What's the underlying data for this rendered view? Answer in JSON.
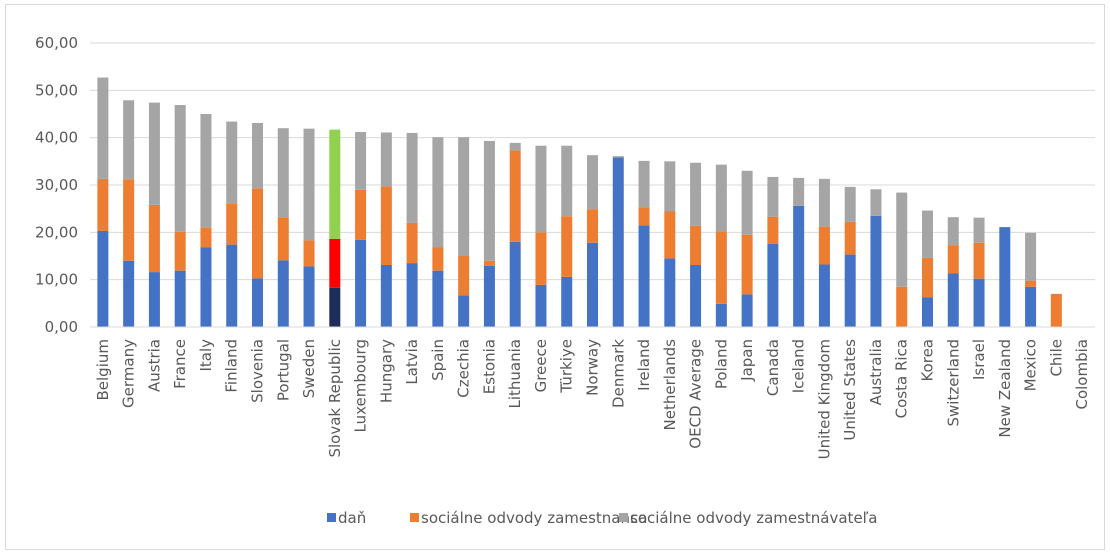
{
  "chart_data": {
    "type": "bar",
    "stacked": true,
    "ylim": [
      0,
      60
    ],
    "ytick_step": 10,
    "ytick_labels": [
      "0,00",
      "10,00",
      "20,00",
      "30,00",
      "40,00",
      "50,00",
      "60,00"
    ],
    "grid": true,
    "legend_position": "bottom",
    "categories": [
      "Belgium",
      "Germany",
      "Austria",
      "France",
      "Italy",
      "Finland",
      "Slovenia",
      "Portugal",
      "Sweden",
      "Slovak Republic",
      "Luxembourg",
      "Hungary",
      "Latvia",
      "Spain",
      "Czechia",
      "Estonia",
      "Lithuania",
      "Greece",
      "Türkiye",
      "Norway",
      "Denmark",
      "Ireland",
      "Netherlands",
      "OECD Average",
      "Poland",
      "Japan",
      "Canada",
      "Iceland",
      "United Kingdom",
      "United States",
      "Australia",
      "Costa Rica",
      "Korea",
      "Switzerland",
      "Israel",
      "New Zealand",
      "Mexico",
      "Chile",
      "Colombia"
    ],
    "series": [
      {
        "name": "daň",
        "color": "#4472c4",
        "values": [
          20.3,
          14.0,
          11.6,
          11.9,
          16.8,
          17.4,
          10.3,
          14.1,
          12.8,
          8.3,
          18.4,
          13.1,
          13.5,
          11.9,
          6.7,
          12.9,
          18.0,
          8.9,
          10.6,
          17.8,
          35.8,
          21.5,
          14.5,
          13.1,
          4.9,
          6.9,
          17.6,
          25.6,
          13.2,
          15.3,
          23.5,
          0.0,
          6.3,
          11.3,
          10.2,
          21.1,
          8.5,
          0.0,
          0.0
        ]
      },
      {
        "name": "sociálne odvody zamestnanca",
        "color": "#ed7d31",
        "values": [
          11.0,
          17.2,
          14.2,
          8.2,
          4.2,
          8.6,
          19.0,
          9.1,
          5.5,
          10.3,
          10.6,
          16.6,
          8.5,
          4.9,
          8.3,
          1.1,
          19.3,
          11.1,
          12.8,
          7.1,
          0.0,
          3.8,
          9.9,
          8.3,
          15.3,
          12.6,
          5.7,
          0.0,
          8.0,
          6.9,
          0.0,
          8.5,
          8.3,
          6.0,
          7.6,
          0.0,
          1.3,
          7.0,
          0.0
        ]
      },
      {
        "name": "sociálne odvody zamestnávateľa",
        "color": "#a5a5a5",
        "values": [
          21.4,
          16.7,
          21.6,
          26.8,
          24.0,
          17.4,
          13.8,
          18.8,
          23.6,
          23.1,
          12.2,
          11.4,
          19.0,
          23.3,
          25.1,
          25.3,
          1.6,
          18.3,
          14.9,
          11.4,
          0.3,
          9.8,
          10.6,
          13.3,
          14.1,
          13.5,
          8.4,
          5.9,
          10.1,
          7.4,
          5.6,
          19.9,
          10.0,
          5.9,
          5.3,
          0.0,
          10.1,
          0.0,
          0.0
        ]
      }
    ],
    "highlight": {
      "category": "Slovak Republic",
      "colors": [
        "#1f2d5a",
        "#ff0000",
        "#92d050"
      ]
    }
  }
}
